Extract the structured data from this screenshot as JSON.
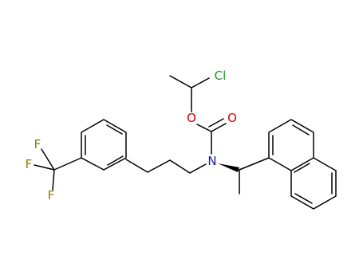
{
  "atoms": [
    {
      "label": "Cl"
    },
    {
      "label": "O"
    },
    {
      "label": "O"
    },
    {
      "label": "N"
    },
    {
      "label": "F"
    },
    {
      "label": "F"
    },
    {
      "label": "F"
    }
  ]
}
